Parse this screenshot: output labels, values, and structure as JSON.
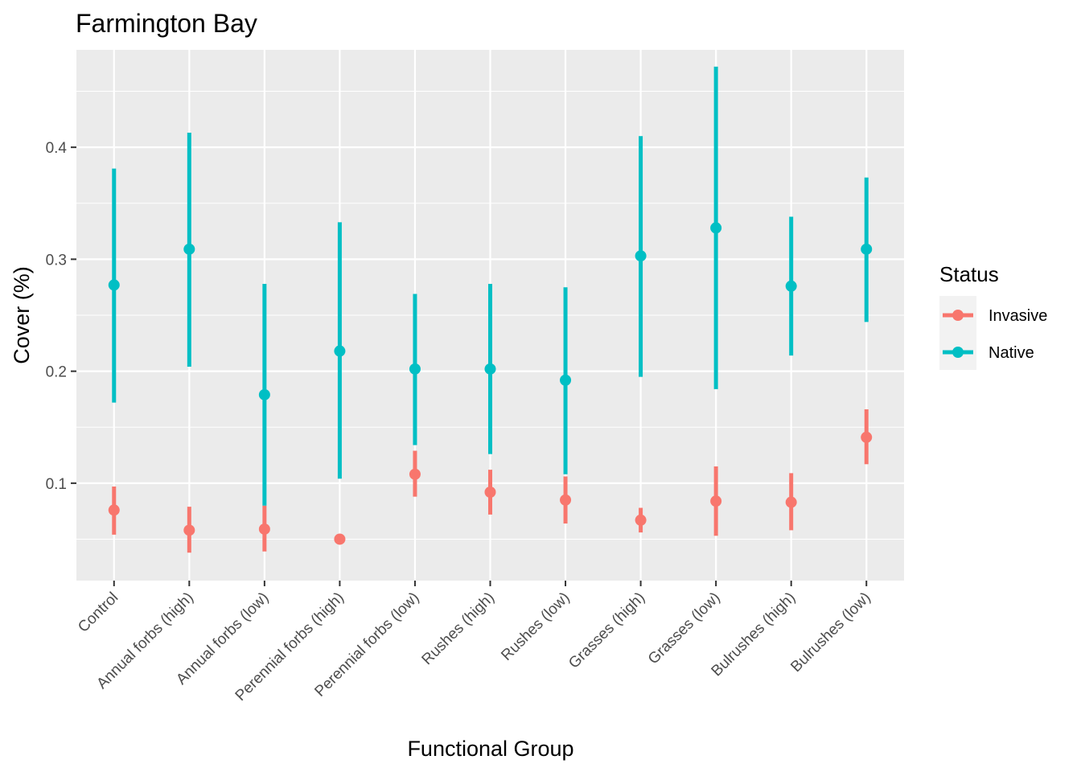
{
  "chart_data": {
    "type": "scatter",
    "title": "Farmington Bay",
    "xlabel": "Functional Group",
    "ylabel": "Cover (%)",
    "categories": [
      "Control",
      "Annual forbs (high)",
      "Annual forbs (low)",
      "Perennial forbs (high)",
      "Perennial forbs (low)",
      "Rushes (high)",
      "Rushes (low)",
      "Grasses (high)",
      "Grasses (low)",
      "Bulrushes (high)",
      "Bulrushes (low)"
    ],
    "y_ticks": [
      0.1,
      0.2,
      0.3,
      0.4
    ],
    "y_tick_labels": [
      "0.1",
      "0.2",
      "0.3",
      "0.4"
    ],
    "ylim": [
      0.013,
      0.487
    ],
    "grid": true,
    "legend": {
      "title": "Status",
      "position": "right"
    },
    "series": [
      {
        "name": "Invasive",
        "color": "#F8766D",
        "values": [
          0.076,
          0.058,
          0.059,
          0.05,
          0.108,
          0.092,
          0.085,
          0.067,
          0.084,
          0.083,
          0.141
        ],
        "lower": [
          0.054,
          0.038,
          0.039,
          null,
          0.088,
          0.072,
          0.064,
          0.056,
          0.053,
          0.058,
          0.117
        ],
        "upper": [
          0.097,
          0.079,
          0.08,
          null,
          0.129,
          0.112,
          0.106,
          0.078,
          0.115,
          0.109,
          0.166
        ]
      },
      {
        "name": "Native",
        "color": "#00BFC4",
        "values": [
          0.277,
          0.309,
          0.179,
          0.218,
          0.202,
          0.202,
          0.192,
          0.303,
          0.328,
          0.276,
          0.309
        ],
        "lower": [
          0.172,
          0.204,
          0.08,
          0.104,
          0.134,
          0.126,
          0.108,
          0.195,
          0.184,
          0.214,
          0.244
        ],
        "upper": [
          0.381,
          0.413,
          0.278,
          0.333,
          0.269,
          0.278,
          0.275,
          0.41,
          0.472,
          0.338,
          0.373
        ]
      }
    ]
  }
}
